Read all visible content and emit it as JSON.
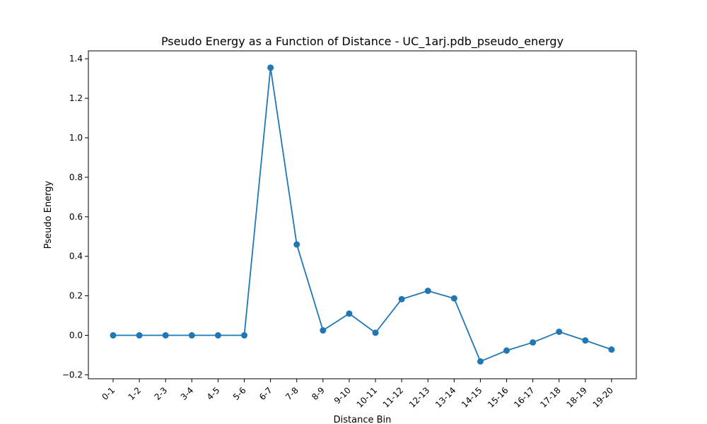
{
  "chart_data": {
    "type": "line",
    "title": "Pseudo Energy as a Function of Distance - UC_1arj.pdb_pseudo_energy",
    "xlabel": "Distance Bin",
    "ylabel": "Pseudo Energy",
    "categories": [
      "0-1",
      "1-2",
      "2-3",
      "3-4",
      "4-5",
      "5-6",
      "6-7",
      "7-8",
      "8-9",
      "9-10",
      "10-11",
      "11-12",
      "12-13",
      "13-14",
      "14-15",
      "15-16",
      "16-17",
      "17-18",
      "18-19",
      "19-20"
    ],
    "series": [
      {
        "values": [
          0,
          0,
          0,
          0,
          0,
          0,
          1.355,
          0.46,
          0.025,
          0.11,
          0.013,
          0.183,
          0.225,
          0.187,
          -0.132,
          -0.077,
          -0.036,
          0.018,
          -0.026,
          -0.072
        ],
        "color": "#1f77b4",
        "marker": "circle"
      }
    ],
    "ylim": [
      -0.22,
      1.44
    ],
    "yticks": [
      -0.2,
      0.0,
      0.2,
      0.4,
      0.6,
      0.8,
      1.0,
      1.2,
      1.4
    ],
    "ytick_labels": [
      "−0.2",
      "0.0",
      "0.2",
      "0.4",
      "0.6",
      "0.8",
      "1.0",
      "1.2",
      "1.4"
    ],
    "grid": false,
    "xtick_rotation": 45
  }
}
